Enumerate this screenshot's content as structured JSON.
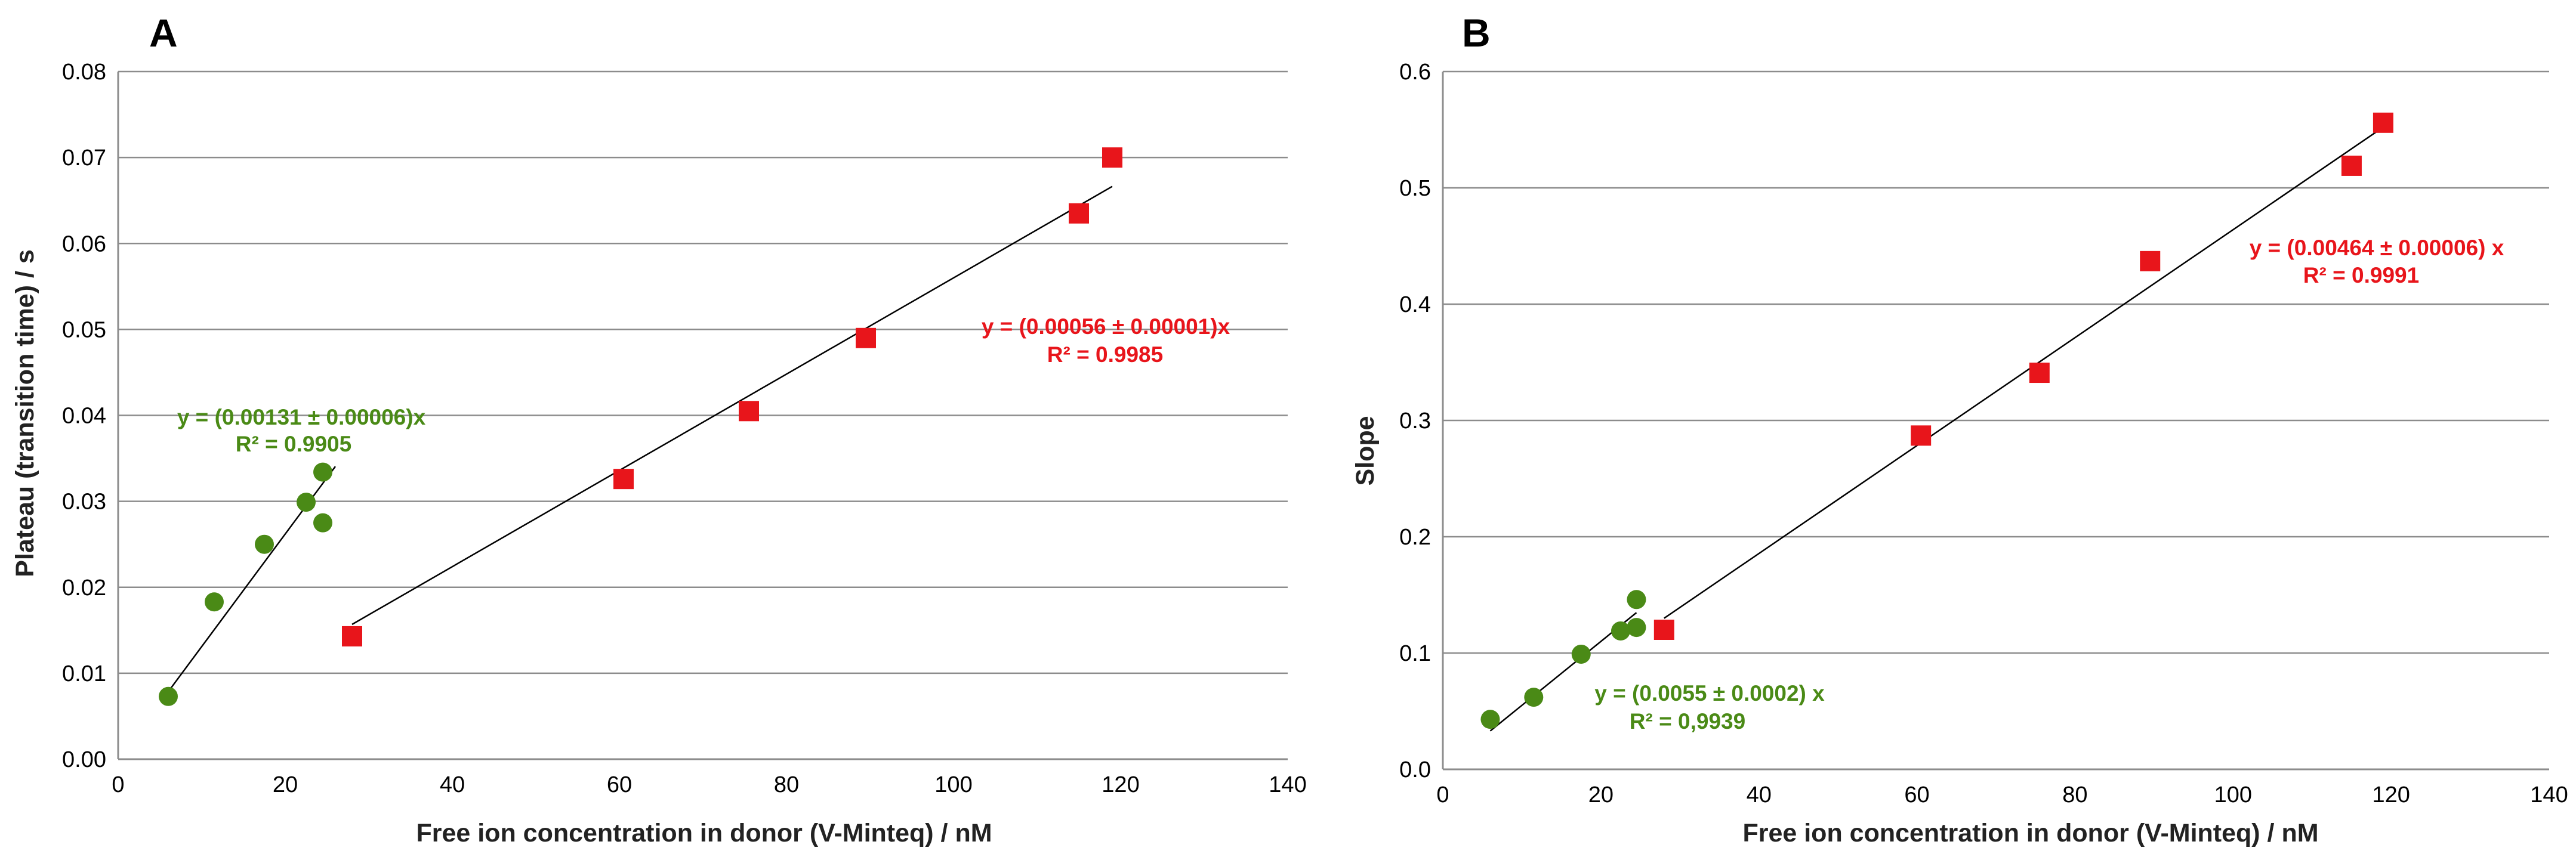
{
  "chart_data": [
    {
      "type": "scatter",
      "panel_label": "A",
      "xlabel": "Free ion concentration in donor (V-Minteq) / nM",
      "ylabel": "Plateau (transition time) / s",
      "xlim": [
        0,
        140
      ],
      "ylim": [
        0,
        0.08
      ],
      "x_ticks": [
        "0",
        "20",
        "40",
        "60",
        "80",
        "100",
        "120",
        "140"
      ],
      "y_ticks": [
        "0.00",
        "0.01",
        "0.02",
        "0.03",
        "0.04",
        "0.05",
        "0.06",
        "0.07",
        "0.08"
      ],
      "grid": "horizontal",
      "series": [
        {
          "name": "green",
          "color": "#4a8a16",
          "marker": "circle",
          "x": [
            6.0,
            11.5,
            17.5,
            22.5,
            24.5,
            24.5
          ],
          "y": [
            0.0073,
            0.0183,
            0.025,
            0.0299,
            0.0275,
            0.0334
          ],
          "fit_from": 6.0,
          "fit_to": 26.0,
          "slope": 0.00131,
          "equation": "y = (0.00131 ± 0.00006)x",
          "r2": "R² = 0.9905"
        },
        {
          "name": "red",
          "color": "#e8151b",
          "marker": "square",
          "x": [
            28.0,
            60.5,
            75.5,
            89.5,
            115.0,
            119.0
          ],
          "y": [
            0.0143,
            0.0326,
            0.0405,
            0.049,
            0.0635,
            0.07
          ],
          "fit_from": 28.0,
          "fit_to": 119.0,
          "slope": 0.00056,
          "equation": "y = (0.00056 ± 0.00001)x",
          "r2": "R² = 0.9985"
        }
      ]
    },
    {
      "type": "scatter",
      "panel_label": "B",
      "xlabel": "Free ion concentration in donor (V-Minteq) / nM",
      "ylabel": "Slope",
      "xlim": [
        0,
        140
      ],
      "ylim": [
        0,
        0.6
      ],
      "x_ticks": [
        "0",
        "20",
        "40",
        "60",
        "80",
        "100",
        "120",
        "140"
      ],
      "y_ticks": [
        "0.0",
        "0.1",
        "0.2",
        "0.3",
        "0.4",
        "0.5",
        "0.6"
      ],
      "grid": "horizontal",
      "series": [
        {
          "name": "green",
          "color": "#4a8a16",
          "marker": "circle",
          "x": [
            6.0,
            11.5,
            17.5,
            22.5,
            24.5,
            24.5
          ],
          "y": [
            0.043,
            0.062,
            0.099,
            0.119,
            0.122,
            0.146
          ],
          "fit_from": 6.0,
          "fit_to": 24.5,
          "slope": 0.0055,
          "equation": "y = (0.0055 ± 0.0002)  x",
          "r2": "R² = 0,9939"
        },
        {
          "name": "red",
          "color": "#e8151b",
          "marker": "square",
          "x": [
            28.0,
            60.5,
            75.5,
            89.5,
            115.0,
            119.0
          ],
          "y": [
            0.12,
            0.287,
            0.341,
            0.437,
            0.519,
            0.556
          ],
          "fit_from": 28.0,
          "fit_to": 118.5,
          "slope": 0.00464,
          "equation": "y = (0.00464 ±  0.00006) x",
          "r2": "R² = 0.9991"
        }
      ]
    }
  ]
}
